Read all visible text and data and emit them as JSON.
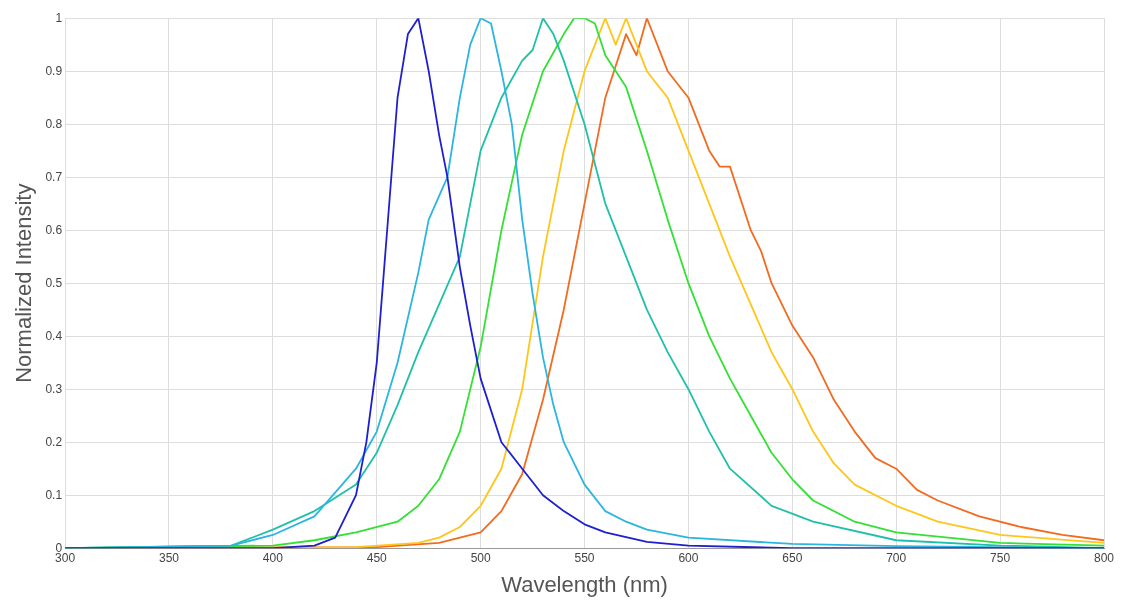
{
  "chart_data": {
    "type": "line",
    "xlabel": "Wavelength (nm)",
    "ylabel": "Normalized Intensity",
    "xlim": [
      300,
      800
    ],
    "xticks": [
      300,
      350,
      400,
      450,
      500,
      550,
      600,
      650,
      700,
      750,
      800
    ],
    "ylim": [
      0,
      1
    ],
    "yticks": [
      0,
      0.1,
      0.2,
      0.3,
      0.4,
      0.5,
      0.6,
      0.7,
      0.8,
      0.9,
      1
    ],
    "grid": true,
    "legend": false,
    "marker": "none",
    "line_style": "solid",
    "series": [
      {
        "color": "#1f1fd0",
        "x": [
          300,
          400,
          420,
          430,
          440,
          445,
          450,
          455,
          460,
          465,
          470,
          475,
          480,
          484,
          490,
          495,
          500,
          510,
          520,
          530,
          540,
          550,
          560,
          580,
          600,
          650,
          800
        ],
        "values": [
          0,
          0,
          0.005,
          0.02,
          0.1,
          0.2,
          0.35,
          0.6,
          0.85,
          0.97,
          1,
          0.9,
          0.78,
          0.7,
          0.53,
          0.42,
          0.32,
          0.2,
          0.15,
          0.1,
          0.07,
          0.045,
          0.03,
          0.012,
          0.005,
          0,
          0
        ]
      },
      {
        "color": "#2bb5e0",
        "x": [
          300,
          380,
          400,
          420,
          440,
          450,
          460,
          470,
          475,
          484,
          490,
          495,
          500,
          505,
          510,
          515,
          520,
          525,
          530,
          535,
          540,
          550,
          560,
          570,
          580,
          600,
          650,
          700,
          800
        ],
        "values": [
          0,
          0.005,
          0.025,
          0.06,
          0.15,
          0.22,
          0.35,
          0.52,
          0.62,
          0.7,
          0.85,
          0.95,
          1,
          0.99,
          0.9,
          0.8,
          0.62,
          0.48,
          0.36,
          0.27,
          0.2,
          0.12,
          0.07,
          0.05,
          0.035,
          0.02,
          0.008,
          0.004,
          0
        ]
      },
      {
        "color": "#20c0a8",
        "x": [
          300,
          380,
          400,
          420,
          440,
          450,
          460,
          470,
          480,
          490,
          500,
          510,
          520,
          525,
          530,
          535,
          540,
          550,
          560,
          570,
          580,
          590,
          600,
          610,
          620,
          640,
          660,
          700,
          750,
          800
        ],
        "values": [
          0,
          0.005,
          0.035,
          0.07,
          0.12,
          0.18,
          0.27,
          0.37,
          0.46,
          0.55,
          0.75,
          0.85,
          0.92,
          0.94,
          1,
          0.97,
          0.92,
          0.8,
          0.65,
          0.55,
          0.45,
          0.37,
          0.3,
          0.22,
          0.15,
          0.08,
          0.05,
          0.015,
          0.005,
          0
        ]
      },
      {
        "color": "#33e033",
        "x": [
          300,
          400,
          420,
          440,
          460,
          470,
          480,
          490,
          500,
          510,
          520,
          530,
          540,
          545,
          550,
          555,
          560,
          570,
          580,
          590,
          600,
          610,
          620,
          630,
          640,
          650,
          660,
          680,
          700,
          750,
          800
        ],
        "values": [
          0,
          0.005,
          0.015,
          0.03,
          0.05,
          0.08,
          0.13,
          0.22,
          0.38,
          0.6,
          0.78,
          0.9,
          0.97,
          1,
          1,
          0.99,
          0.93,
          0.87,
          0.75,
          0.62,
          0.5,
          0.4,
          0.32,
          0.25,
          0.18,
          0.13,
          0.09,
          0.05,
          0.03,
          0.01,
          0.005
        ]
      },
      {
        "color": "#ffc61a",
        "x": [
          300,
          440,
          470,
          480,
          490,
          500,
          510,
          520,
          530,
          540,
          550,
          560,
          565,
          570,
          575,
          580,
          590,
          600,
          610,
          620,
          630,
          640,
          650,
          660,
          670,
          680,
          700,
          720,
          750,
          800
        ],
        "values": [
          0,
          0.002,
          0.01,
          0.02,
          0.04,
          0.08,
          0.15,
          0.3,
          0.55,
          0.75,
          0.9,
          1,
          0.95,
          1,
          0.95,
          0.9,
          0.85,
          0.75,
          0.65,
          0.55,
          0.46,
          0.37,
          0.3,
          0.22,
          0.16,
          0.12,
          0.08,
          0.05,
          0.025,
          0.01
        ]
      },
      {
        "color": "#f26b1f",
        "x": [
          300,
          450,
          480,
          500,
          510,
          520,
          530,
          540,
          550,
          560,
          570,
          575,
          580,
          585,
          590,
          600,
          610,
          615,
          620,
          630,
          635,
          640,
          650,
          660,
          670,
          680,
          690,
          700,
          710,
          720,
          740,
          760,
          780,
          800
        ],
        "values": [
          0,
          0.002,
          0.01,
          0.03,
          0.07,
          0.14,
          0.28,
          0.45,
          0.65,
          0.85,
          0.97,
          0.93,
          1,
          0.95,
          0.9,
          0.85,
          0.75,
          0.72,
          0.72,
          0.6,
          0.56,
          0.5,
          0.42,
          0.36,
          0.28,
          0.22,
          0.17,
          0.15,
          0.11,
          0.09,
          0.06,
          0.04,
          0.025,
          0.015
        ]
      }
    ]
  }
}
